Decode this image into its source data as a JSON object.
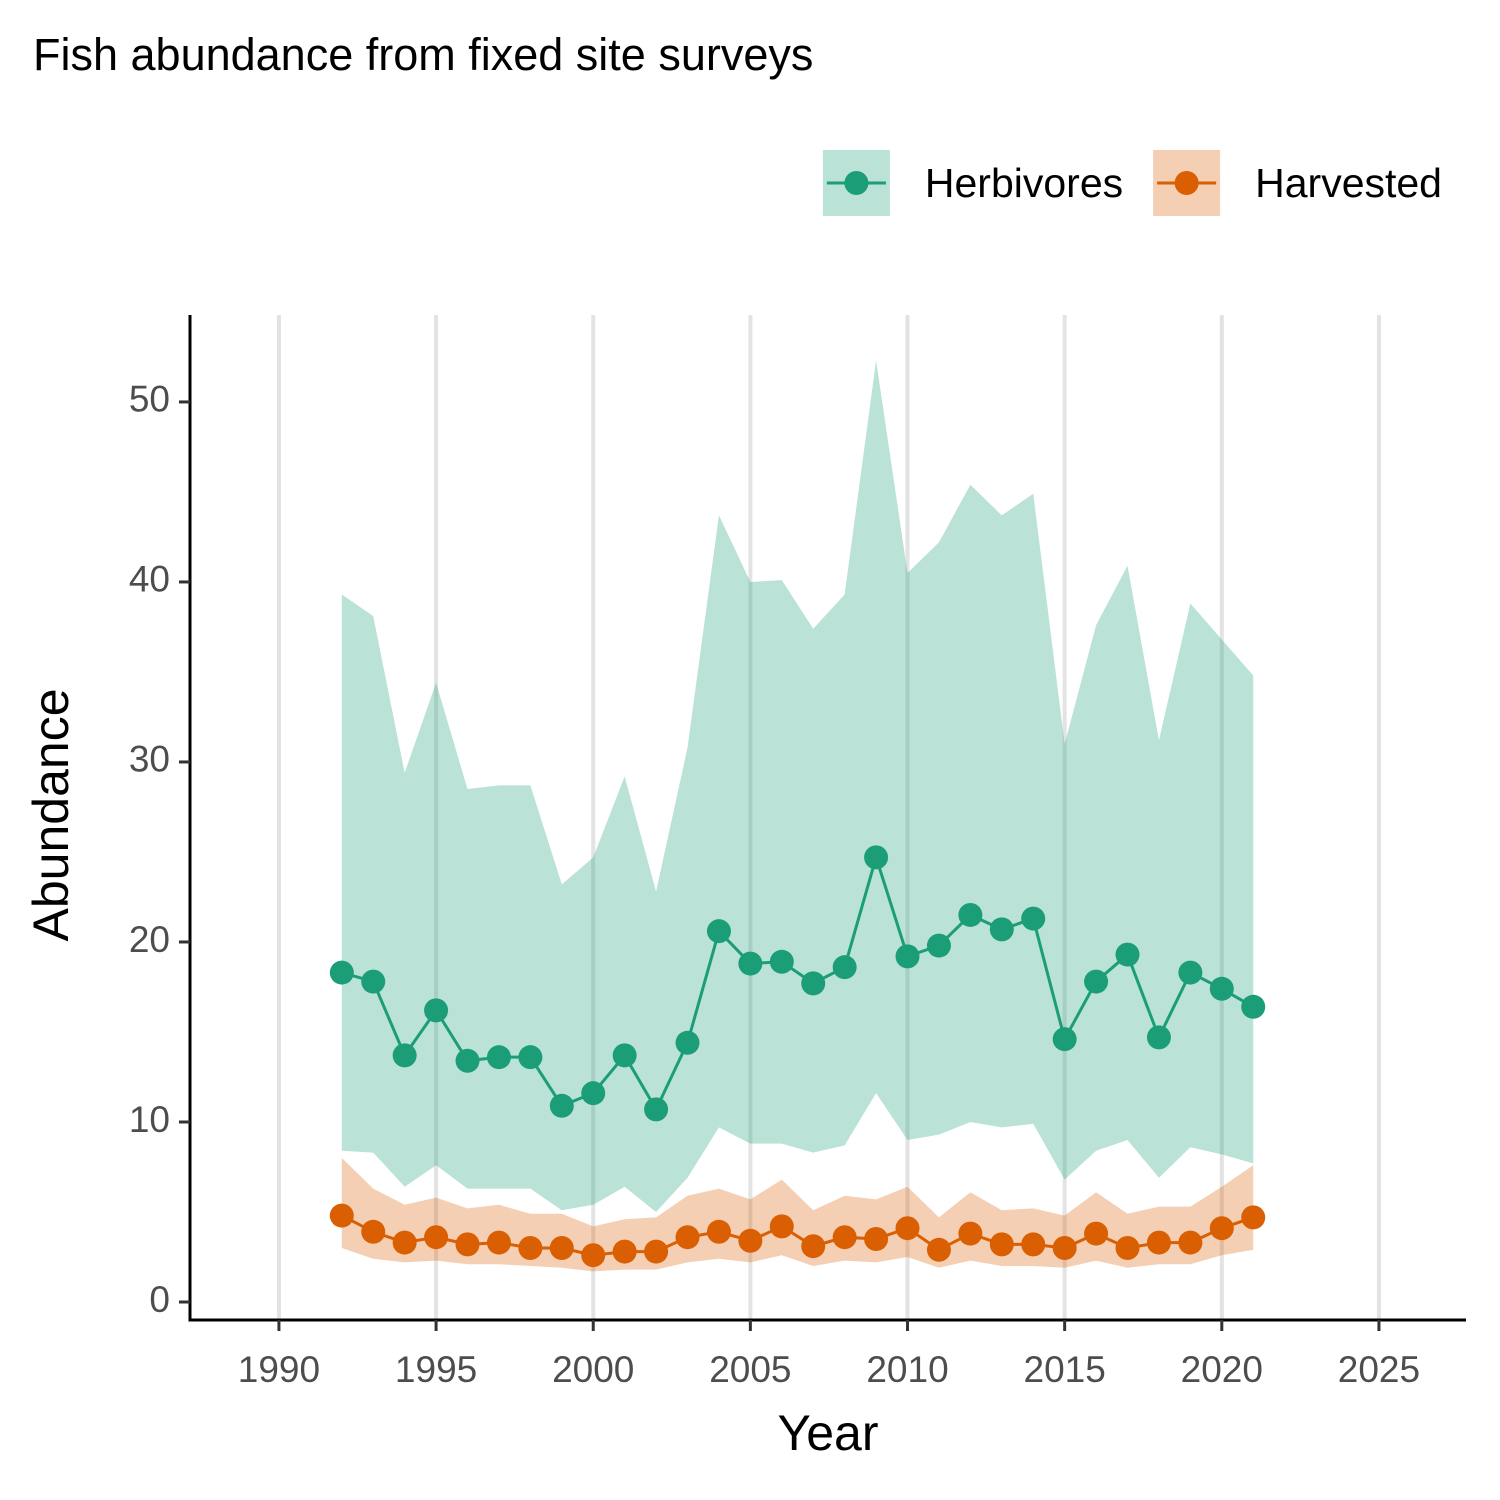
{
  "chart_data": {
    "type": "line",
    "title": "Fish abundance from fixed site surveys",
    "x_label": "Year",
    "y_label": "Abundance",
    "x": [
      1992,
      1993,
      1994,
      1995,
      1996,
      1997,
      1998,
      1999,
      2000,
      2001,
      2002,
      2003,
      2004,
      2005,
      2006,
      2007,
      2008,
      2009,
      2010,
      2011,
      2012,
      2013,
      2014,
      2015,
      2016,
      2017,
      2018,
      2019,
      2020,
      2021
    ],
    "series": [
      {
        "name": "Herbivores",
        "color": "#1b9e77",
        "values": [
          18.3,
          17.8,
          13.7,
          16.2,
          13.4,
          13.6,
          13.6,
          10.9,
          11.6,
          13.7,
          10.7,
          14.4,
          20.6,
          18.8,
          18.9,
          17.7,
          18.6,
          24.7,
          19.2,
          19.8,
          21.5,
          20.7,
          21.3,
          14.6,
          17.8,
          19.3,
          14.7,
          18.3,
          17.4,
          16.4
        ],
        "lower": [
          8.4,
          8.3,
          6.4,
          7.6,
          6.3,
          6.3,
          6.3,
          5.1,
          5.4,
          6.4,
          5.0,
          6.9,
          9.7,
          8.8,
          8.8,
          8.3,
          8.7,
          11.6,
          9.0,
          9.3,
          10.0,
          9.7,
          9.9,
          6.8,
          8.4,
          9.0,
          6.9,
          8.6,
          8.2,
          7.7
        ],
        "upper": [
          39.3,
          38.1,
          29.4,
          34.4,
          28.5,
          28.7,
          28.7,
          23.2,
          24.7,
          29.2,
          22.8,
          30.8,
          43.7,
          40.0,
          40.1,
          37.4,
          39.3,
          52.3,
          40.5,
          42.2,
          45.4,
          43.7,
          44.9,
          31.0,
          37.6,
          40.9,
          31.2,
          38.8,
          36.8,
          34.8
        ]
      },
      {
        "name": "Harvested",
        "color": "#d95f02",
        "values": [
          4.8,
          3.9,
          3.3,
          3.6,
          3.2,
          3.3,
          3.0,
          3.0,
          2.6,
          2.8,
          2.8,
          3.6,
          3.9,
          3.4,
          4.2,
          3.1,
          3.6,
          3.5,
          4.1,
          2.9,
          3.8,
          3.2,
          3.2,
          3.0,
          3.8,
          3.0,
          3.3,
          3.3,
          4.1,
          4.7
        ],
        "lower": [
          3.0,
          2.4,
          2.2,
          2.3,
          2.1,
          2.1,
          2.0,
          1.9,
          1.7,
          1.8,
          1.8,
          2.2,
          2.4,
          2.2,
          2.6,
          2.0,
          2.3,
          2.2,
          2.5,
          1.9,
          2.3,
          2.0,
          2.0,
          1.9,
          2.3,
          1.9,
          2.1,
          2.1,
          2.6,
          2.9
        ],
        "upper": [
          8.0,
          6.3,
          5.4,
          5.8,
          5.2,
          5.4,
          4.9,
          4.9,
          4.2,
          4.6,
          4.7,
          5.9,
          6.3,
          5.7,
          6.8,
          5.1,
          5.9,
          5.7,
          6.4,
          4.7,
          6.1,
          5.1,
          5.2,
          4.8,
          6.1,
          4.9,
          5.3,
          5.3,
          6.4,
          7.6
        ]
      }
    ],
    "ribbon_opacity": 0.3,
    "xlim": [
      1987.17,
      2027.77
    ],
    "xticks": [
      1990,
      1995,
      2000,
      2005,
      2010,
      2015,
      2020,
      2025
    ],
    "ylim": [
      -1,
      54.83
    ],
    "yticks": [
      0,
      10,
      20,
      30,
      40,
      50
    ],
    "grid": "x",
    "legend_position": "top-right"
  }
}
